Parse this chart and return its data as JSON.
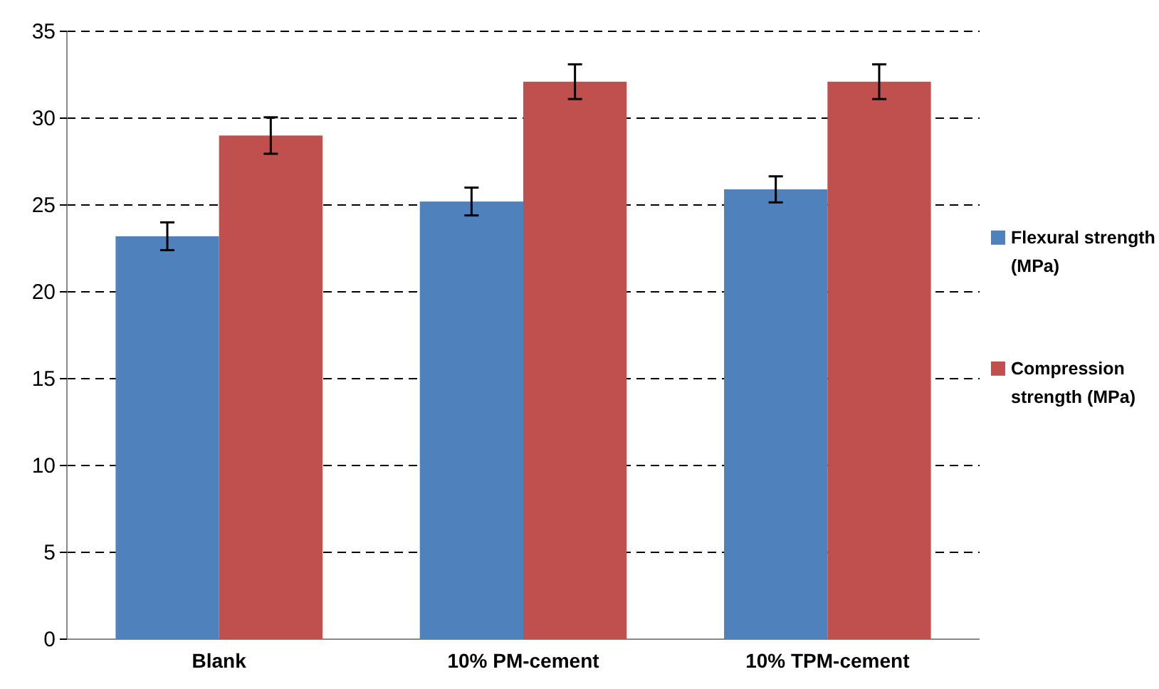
{
  "chart_data": {
    "type": "bar",
    "categories": [
      "Blank",
      "10% PM-cement",
      "10% TPM-cement"
    ],
    "series": [
      {
        "name": "Flexural strength (MPa)",
        "color": "#4f81bd",
        "values": [
          23.2,
          25.2,
          25.9
        ],
        "errors": [
          0.8,
          0.8,
          0.75
        ]
      },
      {
        "name": "Compression strength (MPa)",
        "color": "#c0504d",
        "values": [
          29.0,
          32.1,
          32.1
        ],
        "errors": [
          1.05,
          1.0,
          1.0
        ]
      }
    ],
    "ylim": [
      0,
      35
    ],
    "yticks": [
      0,
      5,
      10,
      15,
      20,
      25,
      30,
      35
    ],
    "grid": "y",
    "legend": "right"
  }
}
